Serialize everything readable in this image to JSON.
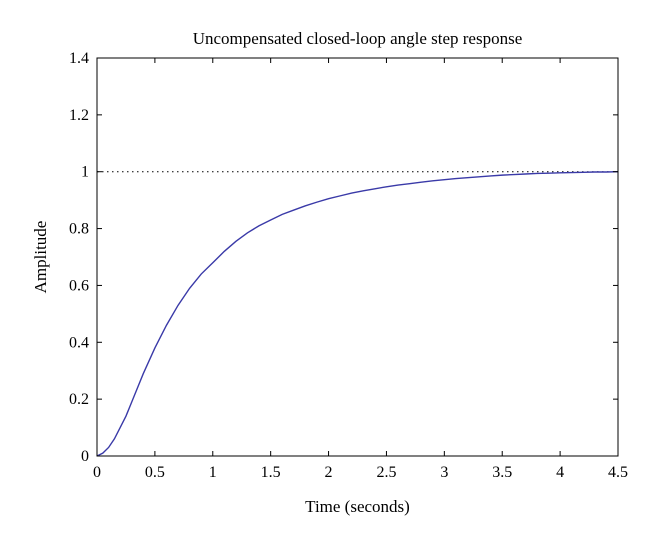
{
  "chart_data": {
    "type": "line",
    "title": "Uncompensated closed-loop angle step response",
    "xlabel": "Time (seconds)",
    "ylabel": "Amplitude",
    "xlim": [
      0,
      4.5
    ],
    "ylim": [
      0,
      1.4
    ],
    "xticks": [
      0,
      0.5,
      1,
      1.5,
      2,
      2.5,
      3,
      3.5,
      4,
      4.5
    ],
    "xtick_labels": [
      "0",
      "0.5",
      "1",
      "1.5",
      "2",
      "2.5",
      "3",
      "3.5",
      "4",
      "4.5"
    ],
    "yticks": [
      0,
      0.2,
      0.4,
      0.6,
      0.8,
      1,
      1.2,
      1.4
    ],
    "ytick_labels": [
      "0",
      "0.2",
      "0.4",
      "0.6",
      "0.8",
      "1",
      "1.2",
      "1.4"
    ],
    "grid": false,
    "reference_line": {
      "y": 1,
      "style": "dotted",
      "color": "#000000"
    },
    "series": [
      {
        "color": "#3a3aa8",
        "x": [
          0,
          0.05,
          0.1,
          0.15,
          0.2,
          0.25,
          0.3,
          0.4,
          0.5,
          0.6,
          0.7,
          0.8,
          0.9,
          1.0,
          1.1,
          1.2,
          1.3,
          1.4,
          1.5,
          1.6,
          1.7,
          1.8,
          1.9,
          2.0,
          2.1,
          2.2,
          2.3,
          2.4,
          2.5,
          2.6,
          2.7,
          2.8,
          2.9,
          3.0,
          3.1,
          3.2,
          3.3,
          3.4,
          3.5,
          3.6,
          3.7,
          3.8,
          3.9,
          4.0,
          4.1,
          4.2,
          4.3,
          4.4,
          4.5
        ],
        "y": [
          0,
          0.01,
          0.03,
          0.06,
          0.1,
          0.14,
          0.19,
          0.29,
          0.38,
          0.46,
          0.53,
          0.59,
          0.64,
          0.68,
          0.72,
          0.755,
          0.785,
          0.81,
          0.83,
          0.85,
          0.865,
          0.88,
          0.893,
          0.905,
          0.915,
          0.925,
          0.933,
          0.94,
          0.947,
          0.953,
          0.958,
          0.963,
          0.968,
          0.972,
          0.976,
          0.979,
          0.982,
          0.985,
          0.988,
          0.99,
          0.992,
          0.994,
          0.995,
          0.996,
          0.997,
          0.998,
          0.999,
          0.999,
          1.0
        ]
      }
    ]
  }
}
